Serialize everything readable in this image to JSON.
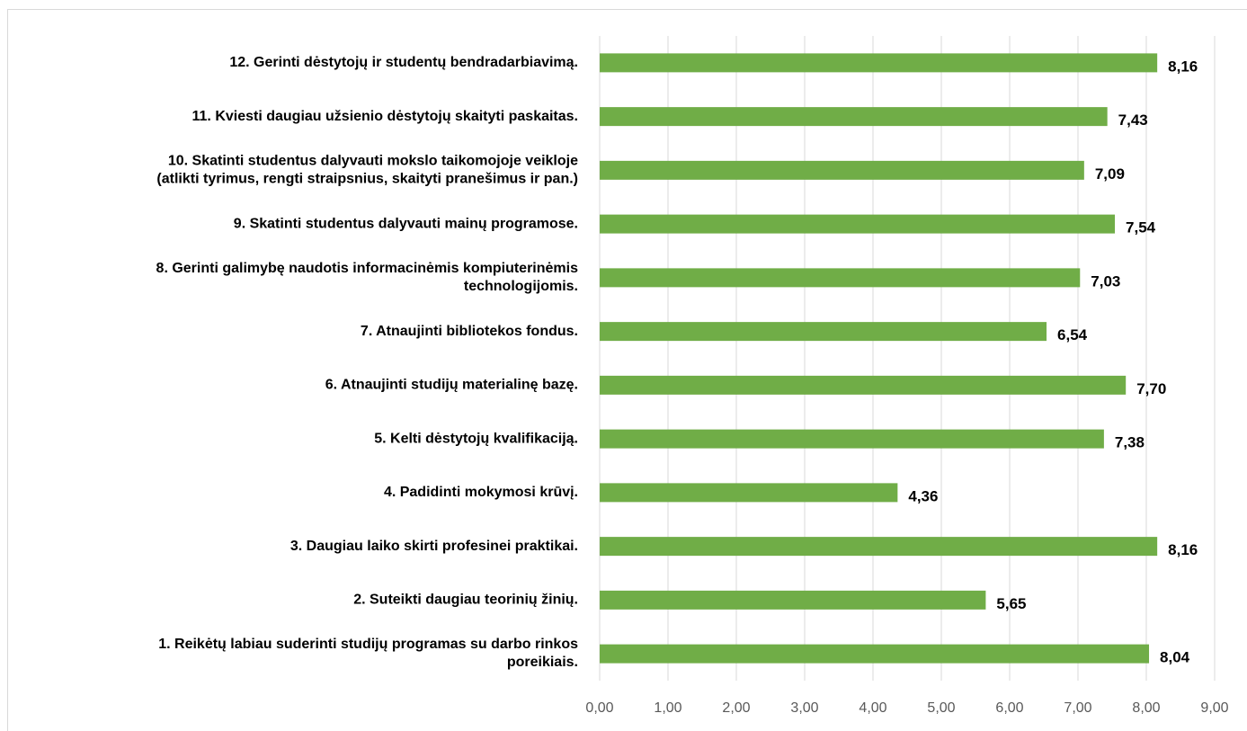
{
  "chart_data": {
    "type": "barh",
    "categories": [
      "12. Gerinti dėstytojų ir studentų bendradarbiavimą.",
      "11. Kviesti daugiau užsienio dėstytojų skaityti paskaitas.",
      "10. Skatinti studentus dalyvauti mokslo taikomojoje veikloje\n(atlikti tyrimus, rengti straipsnius, skaityti pranešimus ir pan.)",
      "9. Skatinti studentus dalyvauti mainų programose.",
      "8. Gerinti galimybę naudotis informacinėmis kompiuterinėmis\ntechnologijomis.",
      "7. Atnaujinti bibliotekos fondus.",
      "6. Atnaujinti studijų materialinę bazę.",
      "5. Kelti dėstytojų kvalifikaciją.",
      "4. Padidinti mokymosi krūvį.",
      "3. Daugiau laiko skirti profesinei praktikai.",
      "2. Suteikti daugiau teorinių žinių.",
      "1. Reikėtų labiau suderinti studijų programas su darbo rinkos\nporeikiais."
    ],
    "values": [
      8.16,
      7.43,
      7.09,
      7.54,
      7.03,
      6.54,
      7.7,
      7.38,
      4.36,
      8.16,
      5.65,
      8.04
    ],
    "value_labels": [
      "8,16",
      "7,43",
      "7,09",
      "7,54",
      "7,03",
      "6,54",
      "7,70",
      "7,38",
      "4,36",
      "8,16",
      "5,65",
      "8,04"
    ],
    "color": "#70ad47",
    "xlim": [
      0,
      9
    ],
    "xticks": [
      {
        "value": 0,
        "label": "0,00"
      },
      {
        "value": 1,
        "label": "1,00"
      },
      {
        "value": 2,
        "label": "2,00"
      },
      {
        "value": 3,
        "label": "3,00"
      },
      {
        "value": 4,
        "label": "4,00"
      },
      {
        "value": 5,
        "label": "5,00"
      },
      {
        "value": 6,
        "label": "6,00"
      },
      {
        "value": 7,
        "label": "7,00"
      },
      {
        "value": 8,
        "label": "8,00"
      },
      {
        "value": 9,
        "label": "9,00"
      }
    ],
    "grid": true
  }
}
